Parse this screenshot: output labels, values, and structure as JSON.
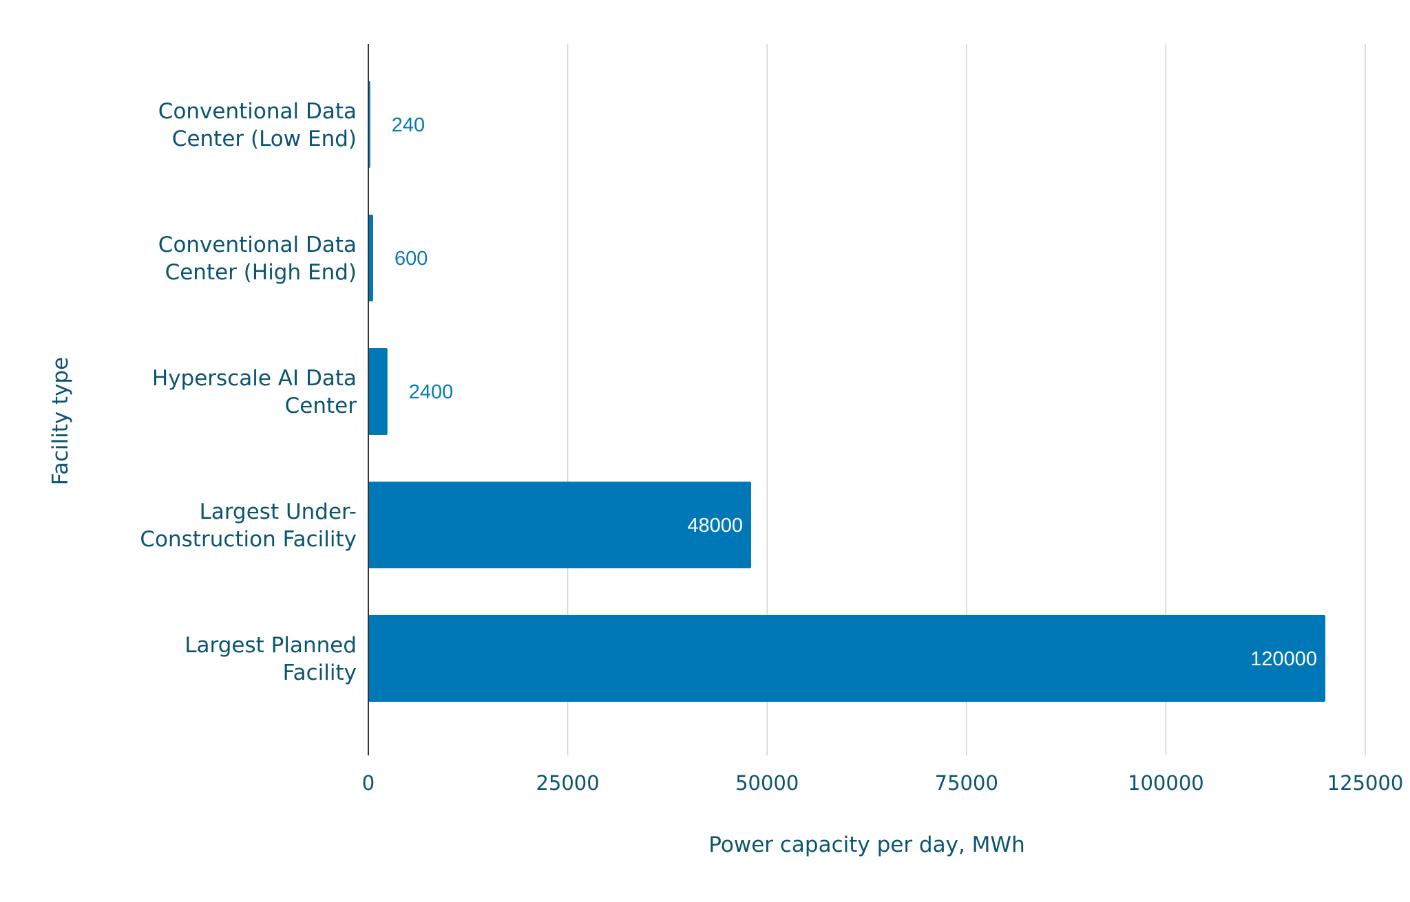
{
  "chart_data": {
    "type": "bar",
    "orientation": "horizontal",
    "title": "",
    "xlabel": "Power capacity per day, MWh",
    "ylabel": "Facility type",
    "xlim": [
      0,
      125000
    ],
    "xticks": [
      "0",
      "25000",
      "50000",
      "75000",
      "100000",
      "125000"
    ],
    "grid": true,
    "categories": [
      [
        "Conventional Data",
        "Center (Low End)"
      ],
      [
        "Conventional Data",
        "Center (High End)"
      ],
      [
        "Hyperscale AI Data",
        "Center"
      ],
      [
        "Largest Under-",
        "Construction Facility"
      ],
      [
        "Largest Planned",
        "Facility"
      ]
    ],
    "values": [
      240,
      600,
      2400,
      48000,
      120000
    ],
    "data_labels": [
      "240",
      "600",
      "2400",
      "48000",
      "120000"
    ],
    "bar_color": "#0077b6",
    "text_color": "#0b5470",
    "label_outside_color": "#0a78b6",
    "label_inside_color": "#ffffff"
  }
}
